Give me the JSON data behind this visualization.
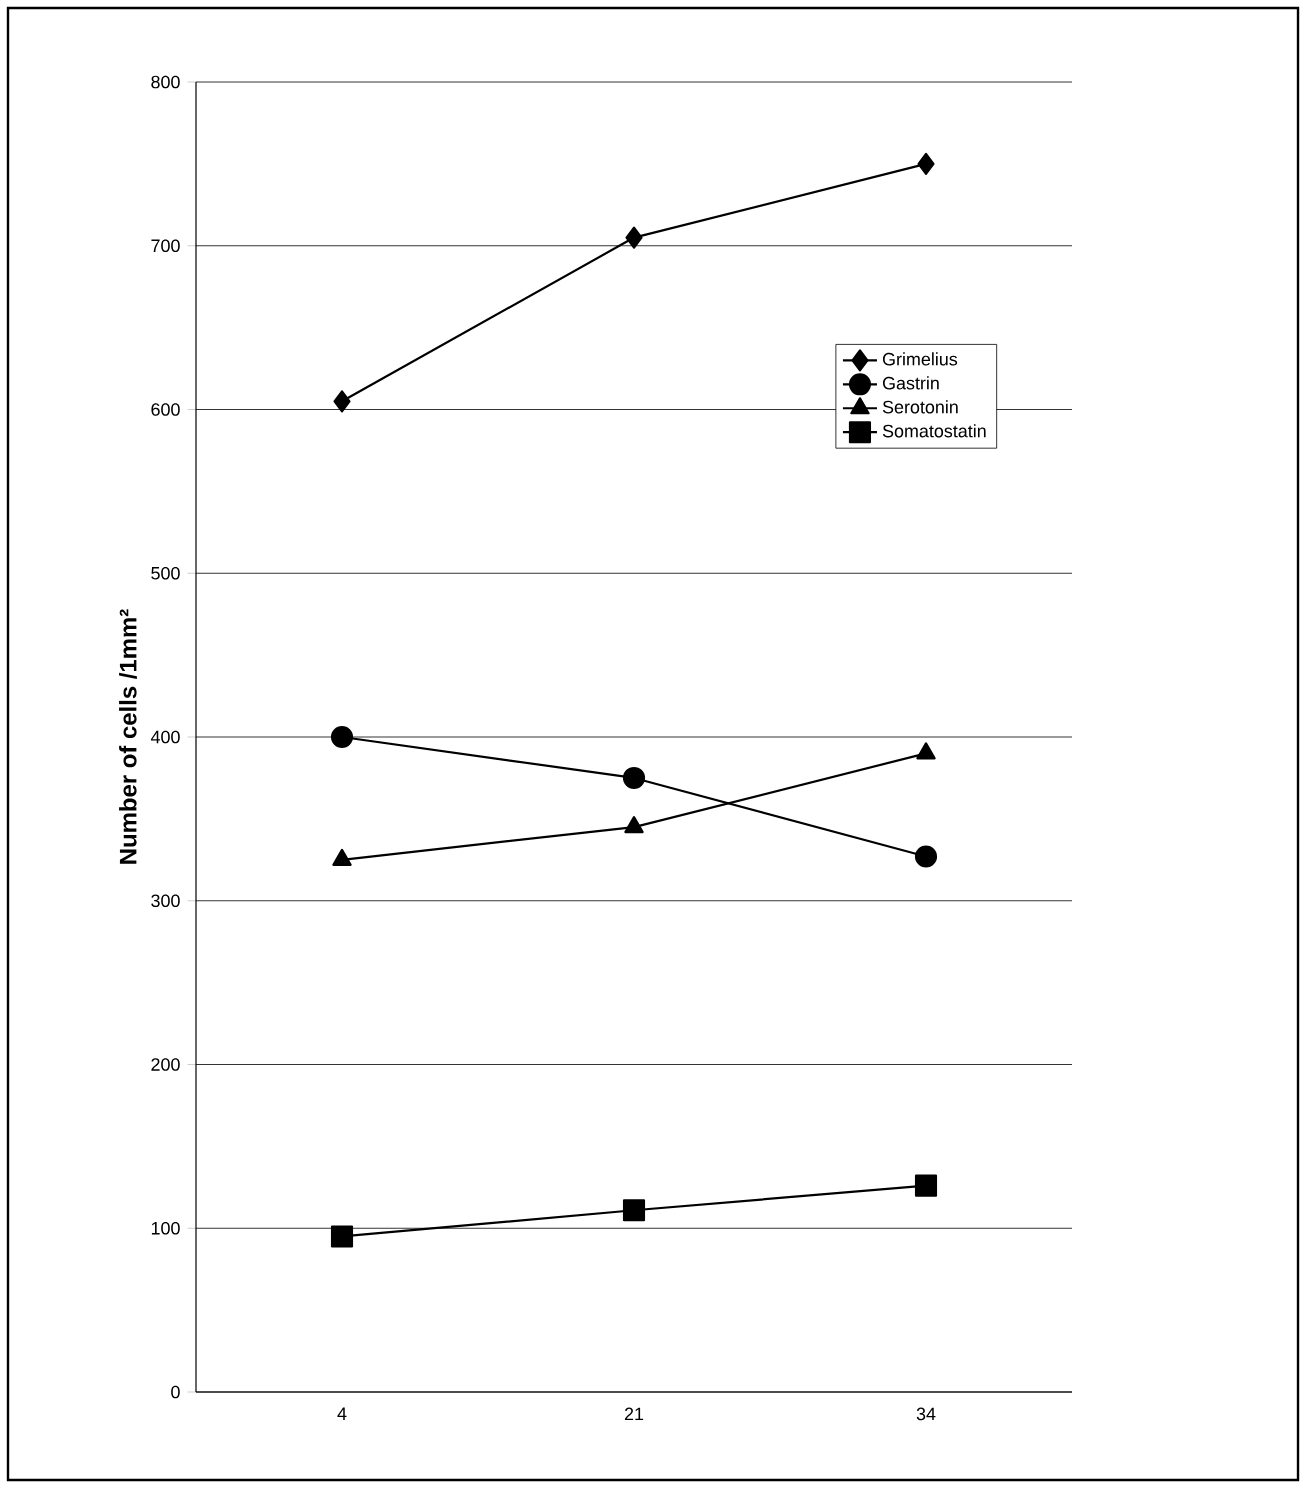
{
  "chart_data": {
    "type": "line",
    "ylabel": "Number of cells /1mm²",
    "categories": [
      "4",
      "21",
      "34"
    ],
    "series": [
      {
        "name": "Grimelius",
        "color": "#000000",
        "marker": "diamond",
        "values": [
          605,
          705,
          750
        ]
      },
      {
        "name": "Gastrin",
        "color": "#000000",
        "marker": "circle",
        "values": [
          400,
          375,
          327
        ]
      },
      {
        "name": "Serotonin",
        "color": "#000000",
        "marker": "triangle",
        "values": [
          325,
          345,
          390
        ]
      },
      {
        "name": "Somatostatin",
        "color": "#000000",
        "marker": "square",
        "values": [
          95,
          111,
          126
        ]
      }
    ],
    "ylim": [
      0,
      800
    ],
    "yticks": [
      0,
      100,
      200,
      300,
      400,
      500,
      600,
      700,
      800
    ],
    "grid": "y",
    "legend": "right",
    "line_style": "solid"
  }
}
